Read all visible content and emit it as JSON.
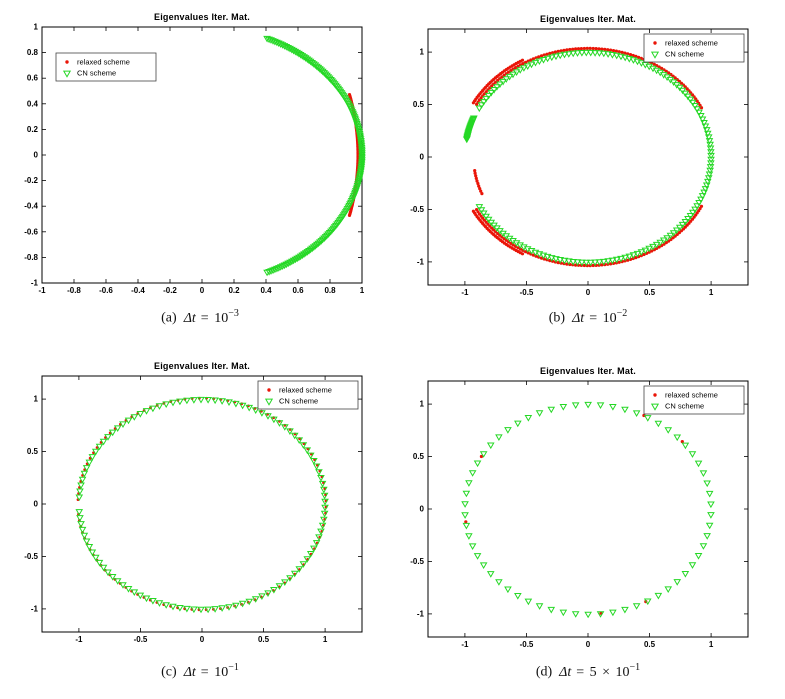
{
  "page": {
    "background": "#ffffff"
  },
  "colors": {
    "relaxed_scheme": "#ea1508",
    "cn_scheme": "#25d825",
    "axis": "#000000"
  },
  "legend_labels": {
    "relaxed": "relaxed scheme",
    "cn": "CN scheme"
  },
  "chart_data": [
    {
      "id": "a",
      "type": "scatter",
      "title": "Eigenvalues Iter. Mat.",
      "caption": {
        "label": "(a)",
        "var": "Δt",
        "rest": "= 10",
        "exp": "−3"
      },
      "xlim": [
        -1,
        1
      ],
      "ylim": [
        -1,
        1
      ],
      "xticks": [
        -1,
        -0.8,
        -0.6,
        -0.4,
        -0.2,
        0,
        0.2,
        0.4,
        0.6,
        0.8,
        1
      ],
      "yticks": [
        -1,
        -0.8,
        -0.6,
        -0.4,
        -0.2,
        0,
        0.2,
        0.4,
        0.6,
        0.8,
        1
      ],
      "grid": false,
      "legend_position": "top-left",
      "series": [
        {
          "name": "relaxed scheme",
          "marker": "dot",
          "color": "#ea1508",
          "size": 3.2,
          "arcs": [
            {
              "cx": 0,
              "cy": 0,
              "rx": 0.975,
              "ry": 1.45,
              "a0": -19,
              "a1": 19,
              "n": 85
            }
          ]
        },
        {
          "name": "CN scheme",
          "marker": "triangle-down",
          "color": "#25d825",
          "size": 5,
          "arcs": [
            {
              "cx": 0,
              "cy": 0,
              "rx": 1,
              "ry": 1,
              "a0": -66,
              "a1": 66,
              "n": 170
            }
          ]
        }
      ]
    },
    {
      "id": "b",
      "type": "scatter",
      "title": "Eigenvalues Iter. Mat.",
      "caption": {
        "label": "(b)",
        "var": "Δt",
        "rest": "= 10",
        "exp": "−2"
      },
      "xlim": [
        -1.3,
        1.3
      ],
      "ylim": [
        -1.22,
        1.22
      ],
      "xticks": [
        -1,
        -0.5,
        0,
        0.5,
        1
      ],
      "yticks": [
        -1,
        -0.5,
        0,
        0.5,
        1
      ],
      "grid": false,
      "legend_position": "top-right",
      "series": [
        {
          "name": "relaxed scheme",
          "marker": "dot",
          "color": "#ea1508",
          "size": 3.2,
          "arcs": [
            {
              "cx": 0,
              "cy": 0,
              "rx": 1.035,
              "ry": 1.035,
              "a0": 27,
              "a1": 151,
              "n": 95
            },
            {
              "cx": 0,
              "cy": 0,
              "rx": 1.035,
              "ry": 1.035,
              "a0": -151,
              "a1": -27,
              "n": 95
            },
            {
              "cx": 0,
              "cy": 0,
              "rx": 1.065,
              "ry": 1.065,
              "a0": 120,
              "a1": 151,
              "n": 30
            },
            {
              "cx": 0,
              "cy": 0,
              "rx": 1.065,
              "ry": 1.065,
              "a0": -151,
              "a1": -120,
              "n": 30
            },
            {
              "cx": 0,
              "cy": 0,
              "rx": 0.93,
              "ry": 0.93,
              "a0": 188,
              "a1": 202,
              "n": 10
            }
          ]
        },
        {
          "name": "CN scheme",
          "marker": "triangle-down",
          "color": "#25d825",
          "size": 5,
          "arcs": [
            {
              "cx": 0,
              "cy": 0,
              "rx": 1,
              "ry": 1,
              "a0": -152,
              "a1": 152,
              "n": 150
            },
            {
              "cx": 0,
              "cy": 0,
              "rx": 1,
              "ry": 1,
              "a0": 158,
              "a1": 170,
              "n": 22
            }
          ]
        }
      ]
    },
    {
      "id": "c",
      "type": "scatter",
      "title": "Eigenvalues Iter. Mat.",
      "caption": {
        "label": "(c)",
        "var": "Δt",
        "rest": "= 10",
        "exp": "−1"
      },
      "xlim": [
        -1.3,
        1.3
      ],
      "ylim": [
        -1.22,
        1.22
      ],
      "xticks": [
        -1,
        -0.5,
        0,
        0.5,
        1
      ],
      "yticks": [
        -1,
        -0.5,
        0,
        0.5,
        1
      ],
      "grid": false,
      "legend_position": "top-right",
      "series": [
        {
          "name": "relaxed scheme",
          "marker": "dot",
          "color": "#ea1508",
          "size": 2.8,
          "arcs": [
            {
              "cx": 0,
              "cy": 0,
              "rx": 1.008,
              "ry": 1.008,
              "a0": -174.4,
              "a1": 177.6,
              "n": 107
            }
          ]
        },
        {
          "name": "CN scheme",
          "marker": "triangle-down",
          "color": "#25d825",
          "size": 5,
          "arcs": [
            {
              "cx": 0,
              "cy": 0,
              "rx": 1,
              "ry": 1,
              "a0": -176,
              "a1": 176,
              "n": 108
            }
          ]
        }
      ]
    },
    {
      "id": "d",
      "type": "scatter",
      "title": "Eigenvalues Iter. Mat.",
      "caption": {
        "label": "(d)",
        "var": "Δt",
        "rest": "= 5 × 10",
        "exp": "−1"
      },
      "xlim": [
        -1.3,
        1.3
      ],
      "ylim": [
        -1.22,
        1.22
      ],
      "xticks": [
        -1,
        -0.5,
        0,
        0.5,
        1
      ],
      "yticks": [
        -1,
        -0.5,
        0,
        0.5,
        1
      ],
      "grid": false,
      "legend_position": "top-right",
      "series": [
        {
          "name": "relaxed scheme",
          "marker": "dot",
          "color": "#ea1508",
          "size": 3.2,
          "arcs": [
            {
              "cx": 0,
              "cy": 0,
              "rx": 1,
              "ry": 1,
              "a0": 63,
              "n": 1
            },
            {
              "cx": 0,
              "cy": 0,
              "rx": 1,
              "ry": 1,
              "a0": 40,
              "n": 1
            },
            {
              "cx": 0,
              "cy": 0,
              "rx": 1,
              "ry": 1,
              "a0": 150,
              "n": 1
            },
            {
              "cx": 0,
              "cy": 0,
              "rx": 1,
              "ry": 1,
              "a0": -62,
              "n": 1
            },
            {
              "cx": 0,
              "cy": 0,
              "rx": 1,
              "ry": 1,
              "a0": -84,
              "n": 1
            },
            {
              "cx": 0,
              "cy": 0,
              "rx": 1,
              "ry": 1,
              "a0": -173,
              "n": 1
            }
          ]
        },
        {
          "name": "CN scheme",
          "marker": "triangle-down",
          "color": "#25d825",
          "size": 5,
          "arcs": [
            {
              "cx": 0,
              "cy": 0,
              "rx": 1,
              "ry": 1,
              "a0": -177,
              "a1": 177,
              "n": 62
            }
          ]
        }
      ]
    }
  ]
}
